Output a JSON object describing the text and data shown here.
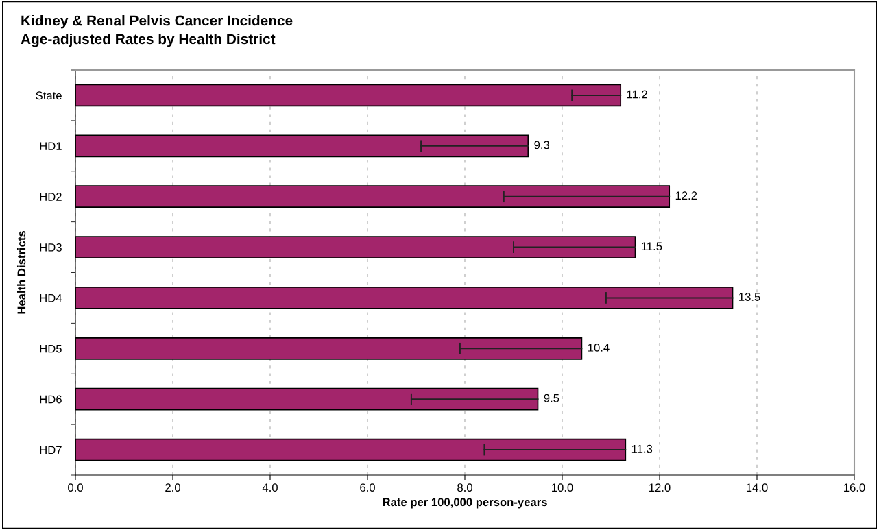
{
  "chart_data": {
    "type": "bar",
    "orientation": "horizontal",
    "title": "Kidney & Renal Pelvis Cancer Incidence\nAge-adjusted Rates by Health District",
    "xlabel": "Rate per 100,000 person-years",
    "ylabel": "Health Districts",
    "categories": [
      "State",
      "HD1",
      "HD2",
      "HD3",
      "HD4",
      "HD5",
      "HD6",
      "HD7"
    ],
    "values": [
      11.2,
      9.3,
      12.2,
      11.5,
      13.5,
      10.4,
      9.5,
      11.3
    ],
    "errors": [
      [
        10.2,
        11.2
      ],
      [
        7.1,
        9.3
      ],
      [
        8.8,
        12.2
      ],
      [
        9.0,
        11.5
      ],
      [
        10.9,
        13.5
      ],
      [
        7.9,
        10.4
      ],
      [
        6.9,
        9.5
      ],
      [
        8.4,
        11.3
      ]
    ],
    "color": "#a3256b",
    "data_labels": true,
    "xlim": [
      0,
      16
    ],
    "xticks": [
      {
        "value": 0,
        "label": "0.0"
      },
      {
        "value": 2,
        "label": "2.0"
      },
      {
        "value": 4,
        "label": "4.0"
      },
      {
        "value": 6,
        "label": "6.0"
      },
      {
        "value": 8,
        "label": "8.0"
      },
      {
        "value": 10,
        "label": "10.0"
      },
      {
        "value": 12,
        "label": "12.0"
      },
      {
        "value": 14,
        "label": "14.0"
      },
      {
        "value": 16,
        "label": "16.0"
      }
    ],
    "grid": "x",
    "legend": false
  }
}
